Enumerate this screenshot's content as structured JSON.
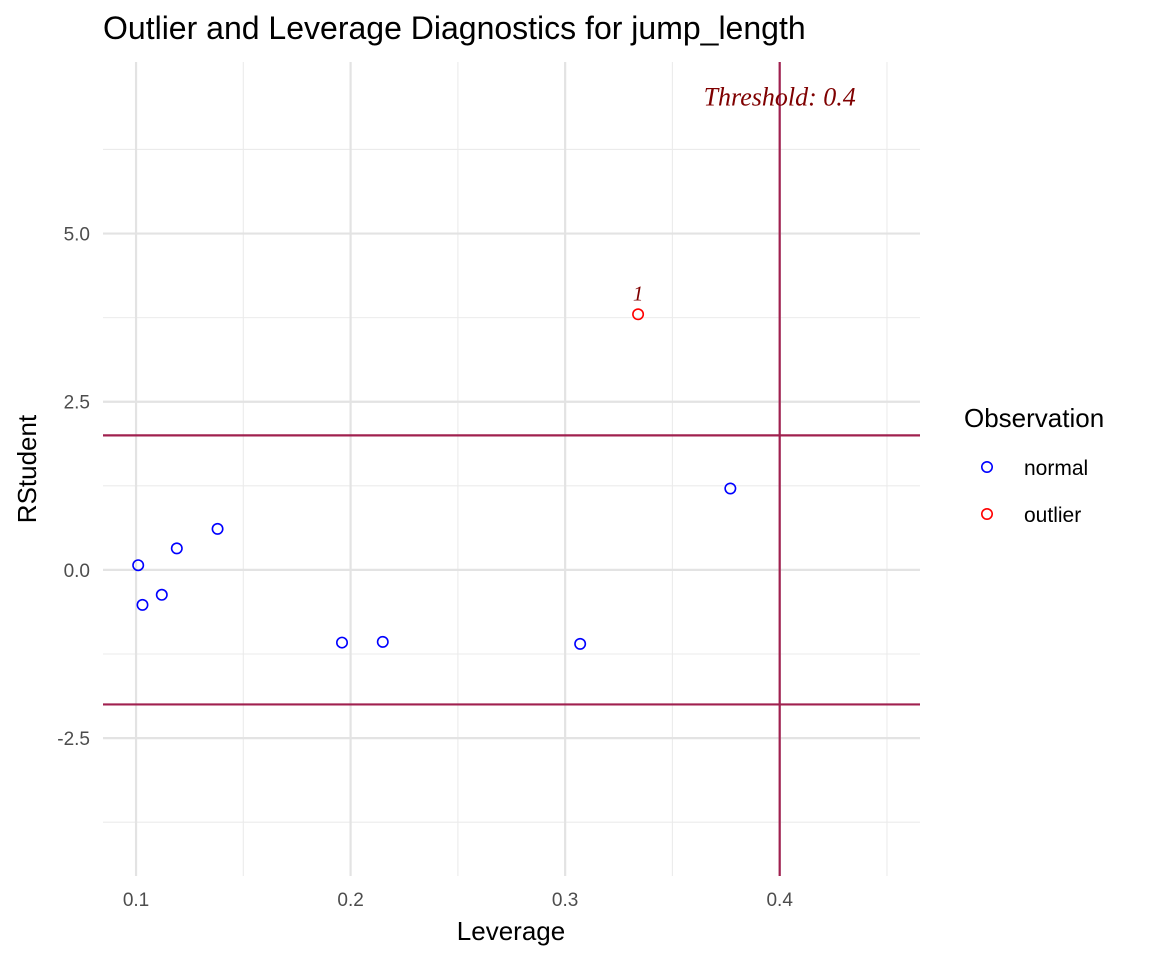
{
  "chart_data": {
    "type": "scatter",
    "title": "Outlier and Leverage Diagnostics for jump_length",
    "xlabel": "Leverage",
    "ylabel": "RStudent",
    "xlim": [
      0.0846,
      0.4654
    ],
    "ylim": [
      -4.55,
      7.55
    ],
    "x_ticks": [
      0.1,
      0.2,
      0.3,
      0.4
    ],
    "x_tick_labels": [
      "0.1",
      "0.2",
      "0.3",
      "0.4"
    ],
    "x_minor_ticks": [
      0.15,
      0.25,
      0.35,
      0.45
    ],
    "y_ticks": [
      -2.5,
      0.0,
      2.5,
      5.0
    ],
    "y_tick_labels": [
      "-2.5",
      "0.0",
      "2.5",
      "5.0"
    ],
    "y_minor_ticks": [
      -3.75,
      -1.25,
      1.25,
      3.75,
      6.25
    ],
    "grid": true,
    "legend": {
      "title": "Observation",
      "placement": "right",
      "entries": [
        {
          "label": "normal",
          "color": "#0000ff"
        },
        {
          "label": "outlier",
          "color": "#ff0000"
        }
      ]
    },
    "series": [
      {
        "name": "normal",
        "color": "#0000ff",
        "points": [
          {
            "x": 0.101,
            "y": 0.07
          },
          {
            "x": 0.103,
            "y": -0.52
          },
          {
            "x": 0.112,
            "y": -0.37
          },
          {
            "x": 0.119,
            "y": 0.32
          },
          {
            "x": 0.138,
            "y": 0.61
          },
          {
            "x": 0.196,
            "y": -1.08
          },
          {
            "x": 0.215,
            "y": -1.07
          },
          {
            "x": 0.307,
            "y": -1.1
          },
          {
            "x": 0.377,
            "y": 1.21
          }
        ]
      },
      {
        "name": "outlier",
        "color": "#ff0000",
        "points": [
          {
            "x": 0.334,
            "y": 3.8,
            "label": "1"
          }
        ]
      }
    ],
    "reference_lines": {
      "color": "#a0204f",
      "horizontal": [
        2,
        -2
      ],
      "vertical": [
        0.4
      ]
    },
    "annotations": [
      {
        "text": "Threshold: 0.4",
        "x": 0.4,
        "y": 6.9,
        "color": "#7f0000",
        "style": "italic serif"
      }
    ]
  }
}
